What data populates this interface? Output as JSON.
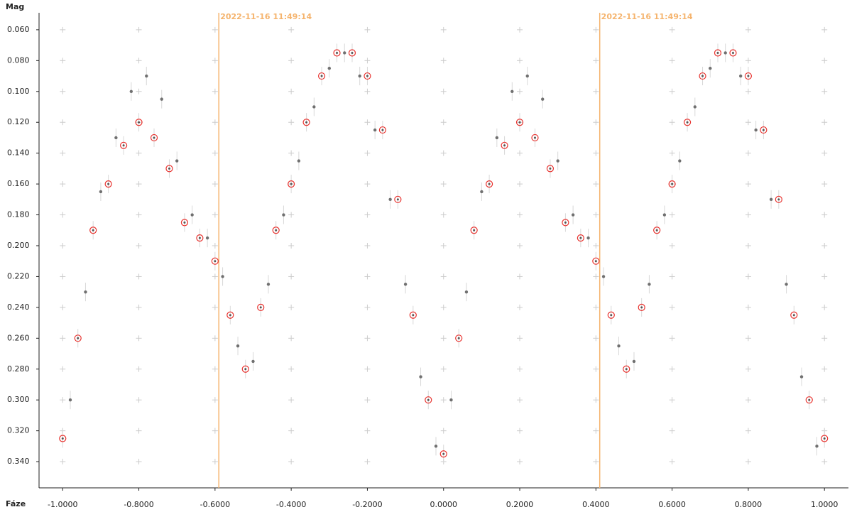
{
  "chart_data": {
    "type": "scatter",
    "x_label": "Fáze",
    "y_label": "Mag",
    "y_inverted": true,
    "xlim": [
      -1.062,
      1.063
    ],
    "ylim": [
      0.049,
      0.357
    ],
    "xticks": [
      {
        "value": -1.0,
        "label": "-1.0000"
      },
      {
        "value": -0.8,
        "label": "-0.8000"
      },
      {
        "value": -0.6,
        "label": "-0.6000"
      },
      {
        "value": -0.4,
        "label": "-0.4000"
      },
      {
        "value": -0.2,
        "label": "-0.2000"
      },
      {
        "value": 0.0,
        "label": "0.0000"
      },
      {
        "value": 0.2,
        "label": "0.2000"
      },
      {
        "value": 0.4,
        "label": "0.4000"
      },
      {
        "value": 0.6,
        "label": "0.6000"
      },
      {
        "value": 0.8,
        "label": "0.8000"
      },
      {
        "value": 1.0,
        "label": "1.0000"
      }
    ],
    "yticks": [
      {
        "value": 0.06,
        "label": "0.060"
      },
      {
        "value": 0.08,
        "label": "0.080"
      },
      {
        "value": 0.1,
        "label": "0.100"
      },
      {
        "value": 0.12,
        "label": "0.120"
      },
      {
        "value": 0.14,
        "label": "0.140"
      },
      {
        "value": 0.16,
        "label": "0.160"
      },
      {
        "value": 0.18,
        "label": "0.180"
      },
      {
        "value": 0.2,
        "label": "0.200"
      },
      {
        "value": 0.22,
        "label": "0.220"
      },
      {
        "value": 0.24,
        "label": "0.240"
      },
      {
        "value": 0.26,
        "label": "0.260"
      },
      {
        "value": 0.28,
        "label": "0.280"
      },
      {
        "value": 0.3,
        "label": "0.300"
      },
      {
        "value": 0.32,
        "label": "0.320"
      },
      {
        "value": 0.34,
        "label": "0.340"
      }
    ],
    "grid": true,
    "markers": [
      {
        "x": -0.59,
        "label": "2022-11-16 11:49:14",
        "color": "#f5b46e"
      },
      {
        "x": 0.41,
        "label": "2022-11-16 11:49:14",
        "color": "#f5b46e"
      }
    ],
    "series": [
      {
        "color": "#707070",
        "marker": "dot",
        "error": 0.006,
        "x": [
          -0.98,
          -0.94,
          -0.9,
          -0.86,
          -0.82,
          -0.78,
          -0.74,
          -0.7,
          -0.66,
          -0.62,
          -0.58,
          -0.54,
          -0.5,
          -0.46,
          -0.42,
          -0.38,
          -0.34,
          -0.3,
          -0.26,
          -0.22,
          -0.18,
          -0.14,
          -0.1,
          -0.06,
          -0.02,
          0.02,
          0.06,
          0.1,
          0.14,
          0.18,
          0.22,
          0.26,
          0.3,
          0.34,
          0.38,
          0.42,
          0.46,
          0.5,
          0.54,
          0.58,
          0.62,
          0.66,
          0.7,
          0.74,
          0.78,
          0.82,
          0.86,
          0.9,
          0.94,
          0.98
        ],
        "values": [
          0.3,
          0.23,
          0.165,
          0.13,
          0.1,
          0.09,
          0.105,
          0.145,
          0.18,
          0.195,
          0.22,
          0.265,
          0.275,
          0.225,
          0.18,
          0.145,
          0.11,
          0.085,
          0.075,
          0.09,
          0.125,
          0.17,
          0.225,
          0.285,
          0.33,
          0.3,
          0.23,
          0.165,
          0.13,
          0.1,
          0.09,
          0.105,
          0.145,
          0.18,
          0.195,
          0.22,
          0.265,
          0.275,
          0.225,
          0.18,
          0.145,
          0.11,
          0.085,
          0.075,
          0.09,
          0.125,
          0.17,
          0.225,
          0.285,
          0.33
        ]
      },
      {
        "color": "#e8322e",
        "marker": "ring",
        "error": 0.006,
        "x": [
          -1.0,
          -0.96,
          -0.92,
          -0.88,
          -0.84,
          -0.8,
          -0.76,
          -0.72,
          -0.68,
          -0.64,
          -0.6,
          -0.56,
          -0.52,
          -0.48,
          -0.44,
          -0.4,
          -0.36,
          -0.32,
          -0.28,
          -0.24,
          -0.2,
          -0.16,
          -0.12,
          -0.08,
          -0.04,
          0.0,
          0.04,
          0.08,
          0.12,
          0.16,
          0.2,
          0.24,
          0.28,
          0.32,
          0.36,
          0.4,
          0.44,
          0.48,
          0.52,
          0.56,
          0.6,
          0.64,
          0.68,
          0.72,
          0.76,
          0.8,
          0.84,
          0.88,
          0.92,
          0.96,
          1.0
        ],
        "values": [
          0.325,
          0.26,
          0.19,
          0.16,
          0.135,
          0.12,
          0.13,
          0.15,
          0.185,
          0.195,
          0.21,
          0.245,
          0.28,
          0.24,
          0.19,
          0.16,
          0.12,
          0.09,
          0.075,
          0.075,
          0.09,
          0.125,
          0.17,
          0.245,
          0.3,
          0.335,
          0.26,
          0.19,
          0.16,
          0.135,
          0.12,
          0.13,
          0.15,
          0.185,
          0.195,
          0.21,
          0.245,
          0.28,
          0.24,
          0.19,
          0.16,
          0.12,
          0.09,
          0.075,
          0.075,
          0.09,
          0.125,
          0.17,
          0.245,
          0.3,
          0.325
        ]
      }
    ]
  }
}
